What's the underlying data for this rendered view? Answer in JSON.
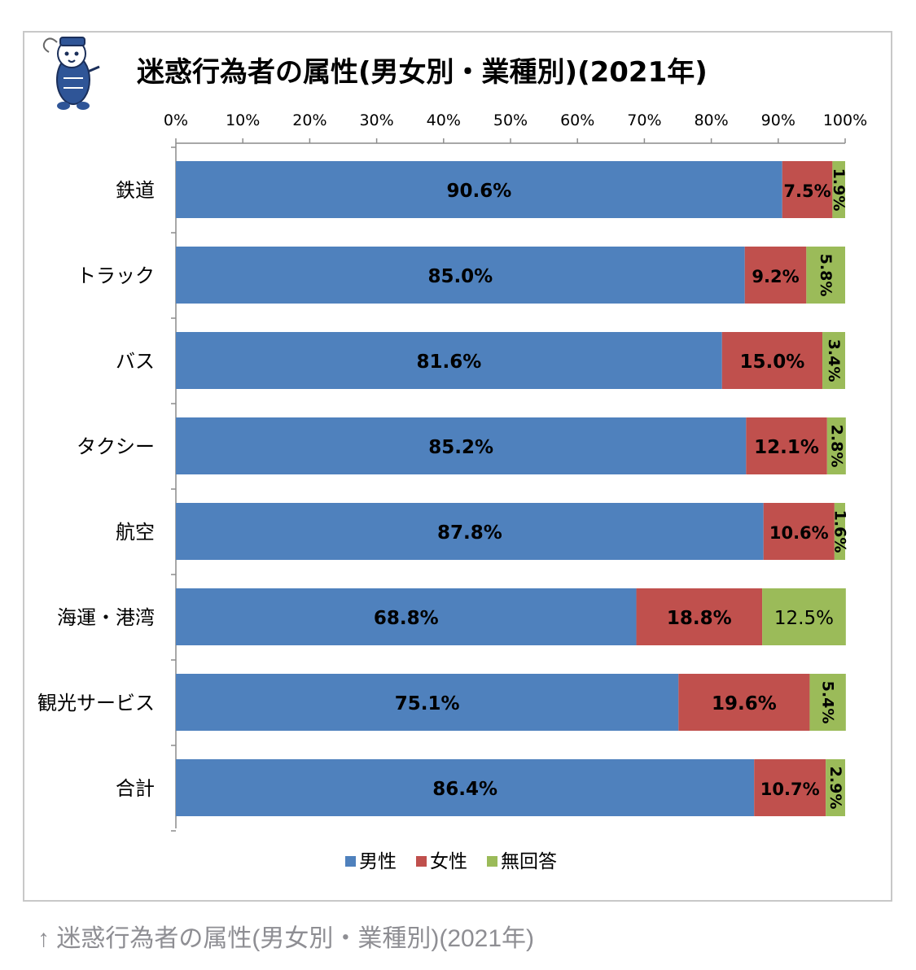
{
  "caption": {
    "arrow": "↑",
    "text": "迷惑行為者の属性(男女別・業種別)(2021年)"
  },
  "mascot": {
    "icon": "mascot-railway-cat-icon"
  },
  "chart_data": {
    "type": "bar",
    "orientation": "horizontal",
    "stacked": "percent",
    "title": "迷惑行為者の属性(男女別・業種別)(2021年)",
    "xlabel": "",
    "ylabel": "",
    "xlim": [
      0,
      100
    ],
    "x_ticks": [
      "0%",
      "10%",
      "20%",
      "30%",
      "40%",
      "50%",
      "60%",
      "70%",
      "80%",
      "90%",
      "100%"
    ],
    "axis_position": "top",
    "grid": false,
    "legend_position": "bottom",
    "categories": [
      "鉄道",
      "トラック",
      "バス",
      "タクシー",
      "航空",
      "海運・港湾",
      "観光サービス",
      "合計"
    ],
    "series": [
      {
        "name": "男性",
        "color": "#4f81bd",
        "values": [
          90.6,
          85.0,
          81.6,
          85.2,
          87.8,
          68.8,
          75.1,
          86.4
        ],
        "labels": [
          "90.6%",
          "85.0%",
          "81.6%",
          "85.2%",
          "87.8%",
          "68.8%",
          "75.1%",
          "86.4%"
        ]
      },
      {
        "name": "女性",
        "color": "#c0504d",
        "values": [
          7.5,
          9.2,
          15.0,
          12.1,
          10.6,
          18.8,
          19.6,
          10.7
        ],
        "labels": [
          "7.5%",
          "9.2%",
          "15.0%",
          "12.1%",
          "10.6%",
          "18.8%",
          "19.6%",
          "10.7%"
        ]
      },
      {
        "name": "無回答",
        "color": "#9bbb59",
        "values": [
          1.9,
          5.8,
          3.4,
          2.8,
          1.6,
          12.5,
          5.4,
          2.9
        ],
        "labels": [
          "1.9%",
          "5.8%",
          "3.4%",
          "2.8%",
          "1.6%",
          "12.5%",
          "5.4%",
          "2.9%"
        ]
      }
    ]
  }
}
